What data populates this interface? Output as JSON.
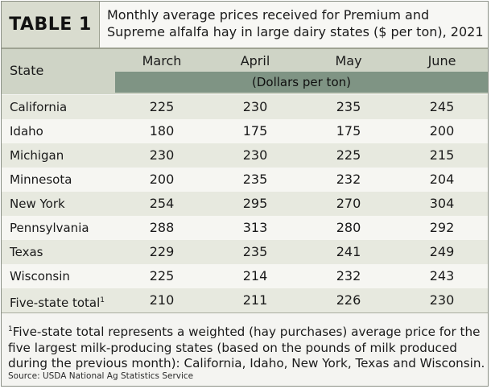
{
  "table": {
    "badge": "TABLE 1",
    "caption": "Monthly average prices received for Premium and Supreme alfalfa hay in large dairy states ($ per ton), 2021",
    "state_header": "State",
    "months": [
      "March",
      "April",
      "May",
      "June"
    ],
    "unit_label": "(Dollars per ton)",
    "rows": [
      {
        "state": "California",
        "sup": "",
        "values": [
          "225",
          "230",
          "235",
          "245"
        ]
      },
      {
        "state": "Idaho",
        "sup": "",
        "values": [
          "180",
          "175",
          "175",
          "200"
        ]
      },
      {
        "state": "Michigan",
        "sup": "",
        "values": [
          "230",
          "230",
          "225",
          "215"
        ]
      },
      {
        "state": "Minnesota",
        "sup": "",
        "values": [
          "200",
          "235",
          "232",
          "204"
        ]
      },
      {
        "state": "New York",
        "sup": "",
        "values": [
          "254",
          "295",
          "270",
          "304"
        ]
      },
      {
        "state": "Pennsylvania",
        "sup": "",
        "values": [
          "288",
          "313",
          "280",
          "292"
        ]
      },
      {
        "state": "Texas",
        "sup": "",
        "values": [
          "229",
          "235",
          "241",
          "249"
        ]
      },
      {
        "state": "Wisconsin",
        "sup": "",
        "values": [
          "225",
          "214",
          "232",
          "243"
        ]
      },
      {
        "state": "Five-state total",
        "sup": "1",
        "values": [
          "210",
          "211",
          "226",
          "230"
        ]
      }
    ]
  },
  "footnote": {
    "marker": "1",
    "text": "Five-state total represents a weighted (hay purchases) average price for the five largest milk-producing states (based on the pounds of milk produced during the previous month): California, Idaho, New York, Texas and Wisconsin."
  },
  "source": "Source: USDA National Ag Statistics Service",
  "colors": {
    "header_band": "#cfd4c6",
    "unit_band": "#7f9484",
    "row_alt": "#e7e9df",
    "row_plain": "#f6f6f2"
  }
}
